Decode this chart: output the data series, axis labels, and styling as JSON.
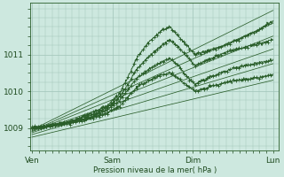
{
  "bg_color": "#cde8df",
  "plot_bg_color": "#cde8df",
  "grid_color": "#a0c4b8",
  "line_color": "#2a5e2a",
  "ylabel": "Pression niveau de la mer( hPa )",
  "x_tick_labels": [
    "Ven",
    "Sam",
    "Dim",
    "Lun"
  ],
  "x_tick_positions": [
    0,
    96,
    192,
    288
  ],
  "ylim": [
    1008.4,
    1012.4
  ],
  "xlim": [
    -2,
    295
  ],
  "yticks": [
    1009,
    1010,
    1011
  ],
  "straight_lines": [
    [
      1008.95,
      1012.2
    ],
    [
      1008.92,
      1011.85
    ],
    [
      1008.9,
      1011.5
    ],
    [
      1008.87,
      1011.15
    ],
    [
      1008.82,
      1010.75
    ],
    [
      1008.75,
      1010.3
    ]
  ],
  "jagged_ctrl_x": [
    0,
    15,
    30,
    50,
    70,
    90,
    105,
    115,
    125,
    140,
    155,
    165,
    175,
    185,
    195,
    210,
    225,
    245,
    265,
    288
  ],
  "jagged_lines": [
    [
      1009.0,
      1009.05,
      1009.1,
      1009.2,
      1009.4,
      1009.6,
      1009.95,
      1010.4,
      1010.9,
      1011.35,
      1011.65,
      1011.75,
      1011.5,
      1011.25,
      1011.0,
      1011.1,
      1011.2,
      1011.4,
      1011.6,
      1011.9
    ],
    [
      1009.0,
      1009.05,
      1009.1,
      1009.2,
      1009.35,
      1009.55,
      1009.85,
      1010.2,
      1010.6,
      1010.95,
      1011.25,
      1011.4,
      1011.2,
      1010.95,
      1010.7,
      1010.85,
      1011.0,
      1011.15,
      1011.25,
      1011.4
    ],
    [
      1009.0,
      1009.05,
      1009.1,
      1009.18,
      1009.3,
      1009.5,
      1009.75,
      1010.05,
      1010.35,
      1010.6,
      1010.8,
      1010.9,
      1010.7,
      1010.4,
      1010.2,
      1010.35,
      1010.5,
      1010.65,
      1010.75,
      1010.85
    ],
    [
      1009.0,
      1009.04,
      1009.08,
      1009.15,
      1009.25,
      1009.4,
      1009.6,
      1009.85,
      1010.1,
      1010.3,
      1010.45,
      1010.5,
      1010.35,
      1010.15,
      1010.0,
      1010.1,
      1010.2,
      1010.3,
      1010.35,
      1010.45
    ]
  ]
}
